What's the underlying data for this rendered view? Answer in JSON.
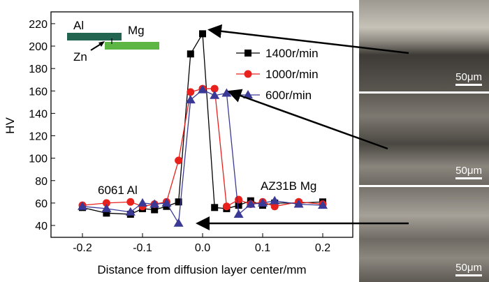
{
  "chart_data": {
    "type": "line",
    "xlabel": "Distance from diffusion layer center/mm",
    "ylabel": "HV",
    "xlim": [
      -0.25,
      0.25
    ],
    "ylim": [
      30,
      230
    ],
    "xticks": [
      -0.2,
      -0.1,
      0.0,
      0.1,
      0.2
    ],
    "xtick_labels": [
      "-0.2",
      "-0.1",
      "0.0",
      "0.1",
      "0.2"
    ],
    "yticks": [
      40,
      60,
      80,
      100,
      120,
      140,
      160,
      180,
      200,
      220
    ],
    "x": [
      -0.2,
      -0.16,
      -0.12,
      -0.1,
      -0.08,
      -0.06,
      -0.04,
      -0.02,
      0,
      0.02,
      0.04,
      0.06,
      0.08,
      0.1,
      0.12,
      0.16,
      0.2
    ],
    "series": [
      {
        "name": "1400r/min",
        "color": "#000000",
        "marker": "square",
        "values": [
          56,
          51,
          50,
          55,
          54,
          57,
          61,
          193,
          211,
          56,
          55,
          58,
          62,
          58,
          60,
          60,
          61
        ]
      },
      {
        "name": "1000r/min",
        "color": "#e8211d",
        "marker": "circle",
        "values": [
          58,
          60,
          61,
          57,
          59,
          61,
          98,
          159,
          162,
          162,
          57,
          63,
          59,
          61,
          57,
          61,
          59
        ]
      },
      {
        "name": "600r/min",
        "color": "#3a3a96",
        "marker": "triangle",
        "values": [
          57,
          55,
          52,
          60,
          59,
          60,
          42,
          152,
          161,
          156,
          158,
          50,
          59,
          60,
          62,
          59,
          58
        ]
      }
    ],
    "legend": "top-right",
    "annotations": [
      "6061 Al",
      "AZ31B Mg"
    ],
    "inset": {
      "labels": [
        "Al",
        "Mg",
        "Zn"
      ],
      "al_color": "#226450",
      "mg_color": "#5db544"
    }
  },
  "micrographs": [
    {
      "scale": "50μm"
    },
    {
      "scale": "50μm"
    },
    {
      "scale": "50μm"
    }
  ]
}
